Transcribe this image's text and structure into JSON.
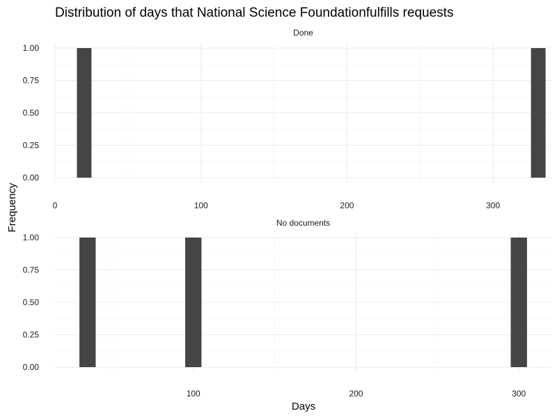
{
  "chart_data": {
    "type": "bar",
    "subtype": "faceted-histogram",
    "title": "Distribution of days that National Science Foundationfulfills requests",
    "xlabel": "Days",
    "ylabel": "Frequency",
    "bar_color": "#454545",
    "grid": true,
    "facets": [
      {
        "label": "Done",
        "xlim": [
          0,
          340
        ],
        "ylim": [
          0,
          1
        ],
        "x_ticks": [
          0,
          100,
          200,
          300
        ],
        "y_ticks": [
          0,
          0.25,
          0.5,
          0.75,
          1
        ],
        "y_tick_labels": [
          "0.00",
          "0.25",
          "0.50",
          "0.75",
          "1.00"
        ],
        "bins": [
          {
            "start": 15,
            "end": 25,
            "count": 1
          },
          {
            "start": 326,
            "end": 336,
            "count": 1
          }
        ]
      },
      {
        "label": "No documents",
        "xlim": [
          15,
          320
        ],
        "ylim": [
          0,
          1
        ],
        "x_ticks": [
          100,
          200,
          300
        ],
        "y_ticks": [
          0,
          0.25,
          0.5,
          0.75,
          1
        ],
        "y_tick_labels": [
          "0.00",
          "0.25",
          "0.50",
          "0.75",
          "1.00"
        ],
        "bins": [
          {
            "start": 30,
            "end": 40,
            "count": 1
          },
          {
            "start": 95,
            "end": 105,
            "count": 1
          },
          {
            "start": 295,
            "end": 305,
            "count": 1
          }
        ]
      }
    ]
  }
}
